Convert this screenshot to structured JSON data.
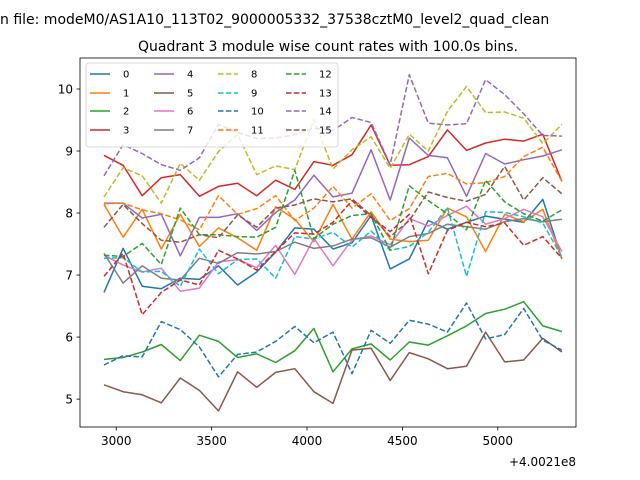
{
  "figure": {
    "suptitle": "n file: modeM0/AS1A10_113T02_9000005332_37538cztM0_level2_quad_clean",
    "title": "Quadrant 3 module wise count rates with 100.0s bins.",
    "x_offset_label": "+4.0021e8"
  },
  "chart_data": {
    "type": "line",
    "title": "Quadrant 3 module wise count rates with 100.0s bins.",
    "xlabel": "",
    "ylabel": "",
    "x_offset": 400210000,
    "xlim": [
      2810,
      5410
    ],
    "ylim": [
      4.55,
      10.5
    ],
    "xticks": [
      3000,
      3500,
      4000,
      4500,
      5000
    ],
    "xtick_labels": [
      "3000",
      "3500",
      "4000",
      "4500",
      "5000"
    ],
    "yticks": [
      5,
      6,
      7,
      8,
      9,
      10
    ],
    "ytick_labels": [
      "5",
      "6",
      "7",
      "8",
      "9",
      "10"
    ],
    "grid": false,
    "legend_position": "top-left",
    "x": [
      2936,
      3036,
      3136,
      3236,
      3336,
      3436,
      3536,
      3636,
      3736,
      3836,
      3936,
      4036,
      4136,
      4236,
      4336,
      4436,
      4536,
      4636,
      4736,
      4836,
      4936,
      5036,
      5136,
      5236,
      5336
    ],
    "series": [
      {
        "name": "0",
        "color": "#1f77b4",
        "dash": "solid",
        "values": [
          6.72,
          7.43,
          6.82,
          6.78,
          6.95,
          6.93,
          7.15,
          6.84,
          7.05,
          7.37,
          7.76,
          7.74,
          7.42,
          7.52,
          7.96,
          7.1,
          7.26,
          7.88,
          7.74,
          7.85,
          7.95,
          7.9,
          7.85,
          8.22,
          7.26
        ]
      },
      {
        "name": "1",
        "color": "#ff7f0e",
        "dash": "solid",
        "values": [
          8.14,
          7.61,
          8.06,
          7.42,
          7.98,
          7.46,
          7.76,
          7.6,
          7.4,
          8.1,
          7.9,
          7.54,
          8.14,
          7.58,
          8.02,
          7.58,
          7.54,
          7.56,
          8.08,
          7.94,
          7.38,
          7.98,
          7.86,
          8.06,
          7.26
        ]
      },
      {
        "name": "2",
        "color": "#2ca02c",
        "dash": "solid",
        "values": [
          5.64,
          5.67,
          5.76,
          5.88,
          5.62,
          6.03,
          5.93,
          5.67,
          5.73,
          5.59,
          5.78,
          6.14,
          5.44,
          5.81,
          5.89,
          5.63,
          5.92,
          5.87,
          6.02,
          6.18,
          6.38,
          6.45,
          6.57,
          6.18,
          6.09
        ]
      },
      {
        "name": "3",
        "color": "#d62728",
        "dash": "solid",
        "values": [
          8.93,
          8.77,
          8.28,
          8.57,
          8.62,
          8.27,
          8.43,
          8.48,
          8.28,
          8.53,
          8.38,
          8.83,
          8.77,
          8.94,
          9.42,
          8.77,
          8.78,
          8.91,
          9.34,
          9.01,
          9.13,
          9.19,
          9.16,
          9.27,
          8.51
        ]
      },
      {
        "name": "4",
        "color": "#9467bd",
        "dash": "solid",
        "values": [
          8.16,
          8.16,
          7.92,
          7.98,
          7.31,
          7.93,
          7.93,
          7.99,
          7.72,
          8.01,
          8.21,
          8.61,
          8.26,
          8.32,
          9.02,
          8.21,
          9.21,
          8.93,
          8.89,
          8.27,
          8.96,
          8.79,
          8.86,
          8.92,
          9.02
        ]
      },
      {
        "name": "5",
        "color": "#8c564b",
        "dash": "solid",
        "values": [
          5.23,
          5.12,
          5.07,
          4.94,
          5.34,
          5.14,
          4.81,
          5.44,
          5.19,
          5.43,
          5.49,
          5.12,
          4.93,
          5.79,
          5.82,
          5.3,
          5.75,
          5.65,
          5.49,
          5.53,
          6.08,
          5.6,
          5.63,
          5.98,
          5.76
        ]
      },
      {
        "name": "6",
        "color": "#e377c2",
        "dash": "solid",
        "values": [
          7.32,
          7.16,
          7.05,
          7.11,
          6.74,
          6.79,
          7.21,
          7.25,
          7.12,
          7.48,
          7.01,
          7.59,
          7.15,
          7.57,
          7.63,
          7.49,
          7.91,
          7.79,
          7.96,
          8.11,
          7.82,
          7.91,
          8.06,
          7.94,
          7.38
        ]
      },
      {
        "name": "7",
        "color": "#7f7f7f",
        "dash": "solid",
        "values": [
          7.35,
          6.87,
          7.15,
          6.95,
          6.92,
          7.27,
          7.19,
          7.36,
          7.34,
          7.38,
          7.53,
          7.43,
          7.47,
          7.58,
          7.6,
          7.45,
          7.62,
          7.67,
          7.82,
          7.78,
          7.74,
          7.86,
          7.91,
          7.86,
          7.9
        ]
      },
      {
        "name": "8",
        "color": "#bcbd22",
        "dash": "dashed",
        "values": [
          8.26,
          8.73,
          8.6,
          8.16,
          8.8,
          8.53,
          8.99,
          9.27,
          8.62,
          8.76,
          8.7,
          9.51,
          8.71,
          9.02,
          9.23,
          8.72,
          9.27,
          9.0,
          9.64,
          10.04,
          9.62,
          9.63,
          9.53,
          9.12,
          9.43
        ]
      },
      {
        "name": "9",
        "color": "#17becf",
        "dash": "dashed",
        "values": [
          7.27,
          7.28,
          7.05,
          7.06,
          6.82,
          7.42,
          7.02,
          7.25,
          7.26,
          6.95,
          7.62,
          7.58,
          7.69,
          7.45,
          7.71,
          7.4,
          7.46,
          7.69,
          8.09,
          6.98,
          8.02,
          8.01,
          7.94,
          7.84,
          7.29
        ]
      },
      {
        "name": "10",
        "color": "#1f77b4",
        "dash": "dashed",
        "values": [
          5.55,
          5.7,
          5.68,
          6.25,
          6.12,
          5.84,
          5.36,
          5.72,
          5.76,
          5.93,
          6.17,
          5.91,
          6.08,
          5.41,
          6.11,
          5.9,
          6.27,
          6.21,
          6.08,
          6.55,
          5.97,
          6.04,
          6.46,
          5.95,
          5.79
        ]
      },
      {
        "name": "11",
        "color": "#ff7f0e",
        "dash": "dashed",
        "values": [
          8.15,
          8.16,
          8.05,
          7.99,
          7.89,
          7.73,
          8.28,
          7.98,
          8.07,
          8.28,
          7.88,
          8.08,
          8.43,
          8.08,
          8.31,
          7.88,
          8.07,
          8.59,
          8.64,
          8.47,
          8.49,
          8.59,
          8.91,
          9.06,
          8.51
        ]
      },
      {
        "name": "12",
        "color": "#2ca02c",
        "dash": "dashed",
        "values": [
          7.32,
          7.3,
          7.51,
          7.17,
          8.08,
          7.65,
          7.65,
          7.62,
          7.61,
          7.77,
          8.69,
          7.59,
          7.82,
          7.96,
          7.99,
          7.4,
          8.44,
          8.2,
          7.99,
          7.73,
          8.53,
          8.18,
          7.99,
          7.87,
          8.05
        ]
      },
      {
        "name": "13",
        "color": "#d62728",
        "dash": "dashed",
        "values": [
          6.98,
          7.35,
          6.36,
          6.72,
          6.92,
          6.84,
          7.4,
          7.26,
          7.08,
          7.38,
          7.68,
          7.66,
          7.85,
          8.2,
          7.93,
          7.7,
          7.98,
          7.02,
          7.72,
          7.85,
          7.78,
          7.84,
          7.48,
          7.62,
          7.27
        ]
      },
      {
        "name": "14",
        "color": "#9467bd",
        "dash": "dashed",
        "values": [
          8.6,
          9.1,
          8.96,
          8.78,
          8.69,
          8.89,
          9.43,
          9.3,
          9.2,
          9.21,
          9.26,
          9.37,
          9.33,
          9.54,
          9.46,
          8.78,
          10.23,
          9.45,
          9.42,
          9.44,
          10.15,
          9.91,
          9.6,
          9.25,
          9.24
        ]
      },
      {
        "name": "15",
        "color": "#8c564b",
        "dash": "dashed",
        "values": [
          7.77,
          8.14,
          7.83,
          7.56,
          7.53,
          7.65,
          7.6,
          7.97,
          7.77,
          8.08,
          8.13,
          8.23,
          8.18,
          8.23,
          7.96,
          7.62,
          7.88,
          8.34,
          8.25,
          8.19,
          8.3,
          8.75,
          8.21,
          8.57,
          8.31
        ]
      }
    ]
  }
}
